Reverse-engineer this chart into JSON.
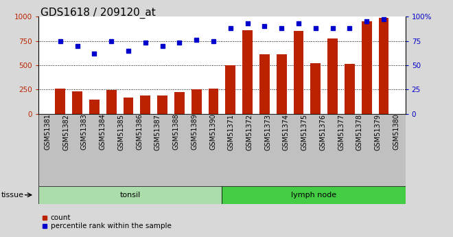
{
  "title": "GDS1618 / 209120_at",
  "samples": [
    "GSM51381",
    "GSM51382",
    "GSM51383",
    "GSM51384",
    "GSM51385",
    "GSM51386",
    "GSM51387",
    "GSM51388",
    "GSM51389",
    "GSM51390",
    "GSM51371",
    "GSM51372",
    "GSM51373",
    "GSM51374",
    "GSM51375",
    "GSM51376",
    "GSM51377",
    "GSM51378",
    "GSM51379",
    "GSM51380"
  ],
  "counts": [
    260,
    230,
    145,
    248,
    165,
    190,
    185,
    220,
    250,
    260,
    500,
    860,
    610,
    615,
    855,
    520,
    775,
    510,
    950,
    985
  ],
  "percentile": [
    75,
    70,
    62,
    75,
    65,
    73,
    70,
    73,
    76,
    75,
    88,
    93,
    90,
    88,
    93,
    88,
    88,
    88,
    95,
    97
  ],
  "tissue_groups": [
    {
      "label": "tonsil",
      "start": 0,
      "end": 10,
      "color": "#aaddaa"
    },
    {
      "label": "lymph node",
      "start": 10,
      "end": 20,
      "color": "#44cc44"
    }
  ],
  "bar_color": "#bb2200",
  "dot_color": "#0000cc",
  "ylim_left": [
    0,
    1000
  ],
  "ylim_right": [
    0,
    100
  ],
  "yticks_left": [
    0,
    250,
    500,
    750,
    1000
  ],
  "yticks_right": [
    0,
    25,
    50,
    75,
    100
  ],
  "grid_values": [
    250,
    500,
    750
  ],
  "background_color": "#d8d8d8",
  "plot_bg_color": "#ffffff",
  "legend_count_label": "count",
  "legend_pct_label": "percentile rank within the sample",
  "tissue_label": "tissue",
  "title_fontsize": 11,
  "axis_label_fontsize": 8,
  "tick_fontsize": 7.5
}
